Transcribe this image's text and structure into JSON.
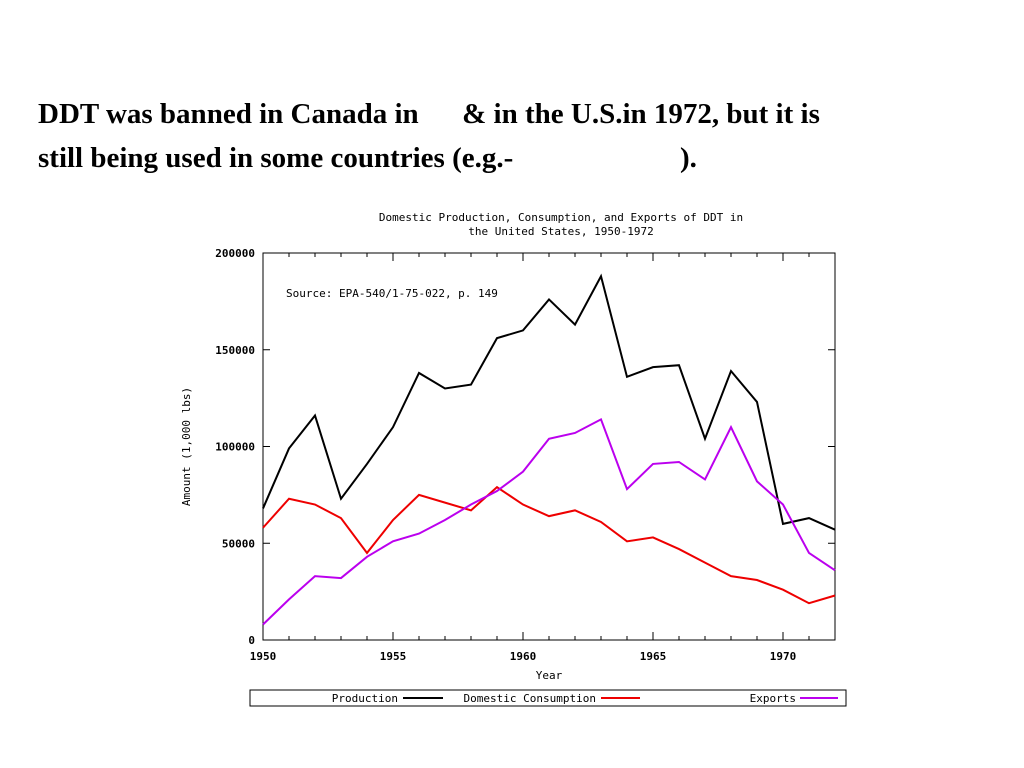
{
  "slide": {
    "line1": "DDT was banned in Canada in      & in the U.S.in 1972, but it is",
    "line2": "still being used in some countries (e.g.-                       )."
  },
  "chart_data": {
    "type": "line",
    "title_line1": "Domestic Production, Consumption, and Exports of DDT in",
    "title_line2": "the United States, 1950-1972",
    "annotation": "Source: EPA-540/1-75-022, p. 149",
    "xlabel": "Year",
    "ylabel": "Amount (1,000 lbs)",
    "xlim": [
      1950,
      1972
    ],
    "ylim": [
      0,
      200000
    ],
    "x_ticks": [
      1950,
      1955,
      1960,
      1965,
      1970
    ],
    "y_ticks": [
      0,
      50000,
      100000,
      150000,
      200000
    ],
    "grid": false,
    "legend_position": "below-plot",
    "x": [
      1950,
      1951,
      1952,
      1953,
      1954,
      1955,
      1956,
      1957,
      1958,
      1959,
      1960,
      1961,
      1962,
      1963,
      1964,
      1965,
      1966,
      1967,
      1968,
      1969,
      1970,
      1971,
      1972
    ],
    "series": [
      {
        "name": "Production",
        "color": "#000000",
        "values": [
          68000,
          99000,
          116000,
          73000,
          91000,
          110000,
          138000,
          130000,
          132000,
          156000,
          160000,
          176000,
          163000,
          188000,
          136000,
          141000,
          142000,
          104000,
          139000,
          123000,
          60000,
          63000,
          57000
        ]
      },
      {
        "name": "Domestic Consumption",
        "color": "#ee0000",
        "values": [
          58000,
          73000,
          70000,
          63000,
          45000,
          62000,
          75000,
          71000,
          67000,
          79000,
          70000,
          64000,
          67000,
          61000,
          51000,
          53000,
          47000,
          40000,
          33000,
          31000,
          26000,
          19000,
          23000
        ]
      },
      {
        "name": "Exports",
        "color": "#bb00ee",
        "values": [
          8000,
          21000,
          33000,
          32000,
          43000,
          51000,
          55000,
          62000,
          70000,
          77000,
          87000,
          104000,
          107000,
          114000,
          78000,
          91000,
          92000,
          83000,
          110000,
          82000,
          70000,
          45000,
          36000
        ]
      }
    ]
  }
}
